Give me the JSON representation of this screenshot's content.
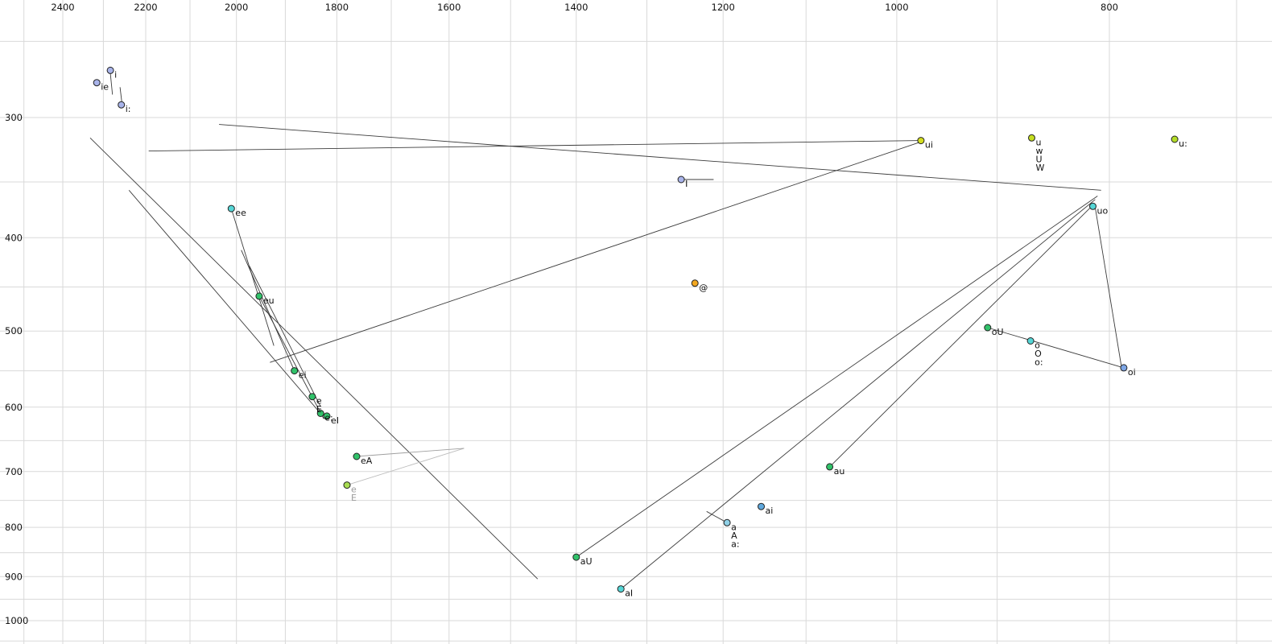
{
  "chart_data": {
    "type": "scatter",
    "title": "",
    "description": "Vowel formant chart: F2 (Hz, log scale, reversed) across the top, F1 (Hz, log scale, reversed) down the left, with vowel tokens and diphthong trajectory lines.",
    "x_axis": {
      "scale": "log",
      "reversed": true,
      "tick_labels": [
        "2400",
        "2200",
        "2000",
        "1800",
        "1600",
        "1400",
        "1200",
        "1000",
        "800"
      ],
      "ticks": [
        2400,
        2200,
        2000,
        1800,
        1600,
        1400,
        1200,
        1000,
        800
      ],
      "grid_min": 700,
      "grid_max": 2500,
      "grid_step": 100
    },
    "y_axis": {
      "scale": "log",
      "reversed": true,
      "tick_labels": [
        "300",
        "400",
        "500",
        "600",
        "700",
        "800",
        "900",
        "1000"
      ],
      "ticks": [
        300,
        400,
        500,
        600,
        700,
        800,
        900,
        1000
      ],
      "grid_min": 250,
      "grid_max": 1050,
      "grid_step": 50
    },
    "colors": {
      "grid": "#d9d9d9",
      "line": "#3c3c3c",
      "tick_text": "#111111",
      "label_text": "#111111",
      "point_stroke": "#222222"
    },
    "points": [
      {
        "labels": [
          "ie"
        ],
        "f2": 2316,
        "f1": 276,
        "color": "#a9b4ea"
      },
      {
        "labels": [
          "i"
        ],
        "f2": 2283,
        "f1": 268,
        "color": "#a9b4ea"
      },
      {
        "labels": [
          "i:"
        ],
        "f2": 2257,
        "f1": 291,
        "color": "#a9b4ea"
      },
      {
        "labels": [
          "I"
        ],
        "f2": 1254,
        "f1": 348,
        "color": "#a9b4ea"
      },
      {
        "labels": [
          "ui"
        ],
        "f2": 975,
        "f1": 317,
        "color": "#d3dd20"
      },
      {
        "labels": [
          "u",
          "w",
          "U",
          "W"
        ],
        "f2": 868,
        "f1": 315,
        "color": "#c4dd20"
      },
      {
        "labels": [
          "u:"
        ],
        "f2": 747,
        "f1": 316,
        "color": "#b4dd28"
      },
      {
        "labels": [
          "ee"
        ],
        "f2": 2011,
        "f1": 373,
        "color": "#55d6d6"
      },
      {
        "labels": [
          "uo"
        ],
        "f2": 814,
        "f1": 371,
        "color": "#55d6d6"
      },
      {
        "labels": [
          "@"
        ],
        "f2": 1236,
        "f1": 446,
        "color": "#f2a71f"
      },
      {
        "labels": [
          "eu"
        ],
        "f2": 1953,
        "f1": 460,
        "color": "#31c26a"
      },
      {
        "labels": [
          "oU"
        ],
        "f2": 909,
        "f1": 496,
        "color": "#31c26a"
      },
      {
        "labels": [
          "o",
          "O",
          "o:"
        ],
        "f2": 869,
        "f1": 512,
        "color": "#55d6d6"
      },
      {
        "labels": [
          "oi"
        ],
        "f2": 788,
        "f1": 546,
        "color": "#7da6e6"
      },
      {
        "labels": [
          "ei"
        ],
        "f2": 1882,
        "f1": 550,
        "color": "#31c26a"
      },
      {
        "labels": [
          "e",
          "E"
        ],
        "f2": 1847,
        "f1": 585,
        "color": "#31c26a"
      },
      {
        "labels": [
          "e:"
        ],
        "f2": 1831,
        "f1": 609,
        "color": "#31c26a"
      },
      {
        "labels": [
          "eI"
        ],
        "f2": 1819,
        "f1": 613,
        "color": "#31c26a"
      },
      {
        "labels": [
          "eA"
        ],
        "f2": 1763,
        "f1": 675,
        "color": "#31c26a"
      },
      {
        "labels": [
          "e",
          "E"
        ],
        "f2": 1781,
        "f1": 723,
        "color": "#a8dd52",
        "label_color": "#9a9a9a"
      },
      {
        "labels": [
          "au"
        ],
        "f2": 1073,
        "f1": 692,
        "color": "#31c26a"
      },
      {
        "labels": [
          "ai"
        ],
        "f2": 1153,
        "f1": 761,
        "color": "#5fa8dd"
      },
      {
        "labels": [
          "a",
          "A",
          "a:"
        ],
        "f2": 1195,
        "f1": 791,
        "color": "#8fd0e6"
      },
      {
        "labels": [
          "aU"
        ],
        "f2": 1400,
        "f1": 859,
        "color": "#31c26a"
      },
      {
        "labels": [
          "aI"
        ],
        "f2": 1336,
        "f1": 927,
        "color": "#55d6d6"
      }
    ],
    "lines": [
      {
        "from": [
          2283,
          270
        ],
        "to": [
          2278,
          284
        ]
      },
      {
        "from": [
          2260,
          279
        ],
        "to": [
          2255,
          291
        ]
      },
      {
        "from": [
          2193,
          325
        ],
        "to": [
          975,
          317
        ]
      },
      {
        "from": [
          2037,
          305
        ],
        "to": [
          807,
          357
        ]
      },
      {
        "from": [
          2332,
          315
        ],
        "to": [
          1458,
          905
        ]
      },
      {
        "from": [
          2239,
          357
        ],
        "to": [
          1830,
          610
        ]
      },
      {
        "from": [
          2011,
          373
        ],
        "to": [
          1923,
          518
        ]
      },
      {
        "from": [
          1990,
          412
        ],
        "to": [
          1882,
          550
        ]
      },
      {
        "from": [
          1973,
          428
        ],
        "to": [
          1831,
          599
        ]
      },
      {
        "from": [
          1953,
          460
        ],
        "to": [
          1825,
          617
        ]
      },
      {
        "from": [
          1931,
          539
        ],
        "to": [
          975,
          318
        ]
      },
      {
        "from": [
          1400,
          859
        ],
        "to": [
          810,
          362
        ]
      },
      {
        "from": [
          1336,
          927
        ],
        "to": [
          812,
          365
        ]
      },
      {
        "from": [
          1073,
          692
        ],
        "to": [
          816,
          372
        ]
      },
      {
        "from": [
          1254,
          348
        ],
        "to": [
          1212,
          348
        ]
      },
      {
        "from": [
          1195,
          791
        ],
        "to": [
          1221,
          770
        ]
      },
      {
        "from": [
          909,
          496
        ],
        "to": [
          788,
          546
        ]
      },
      {
        "from": [
          812,
          372
        ],
        "to": [
          790,
          544
        ]
      },
      {
        "from": [
          1781,
          723
        ],
        "to": [
          1575,
          662
        ],
        "color": "#bdbdbd"
      },
      {
        "from": [
          1763,
          675
        ],
        "to": [
          1575,
          662
        ],
        "color": "#9f9f9f"
      }
    ]
  }
}
